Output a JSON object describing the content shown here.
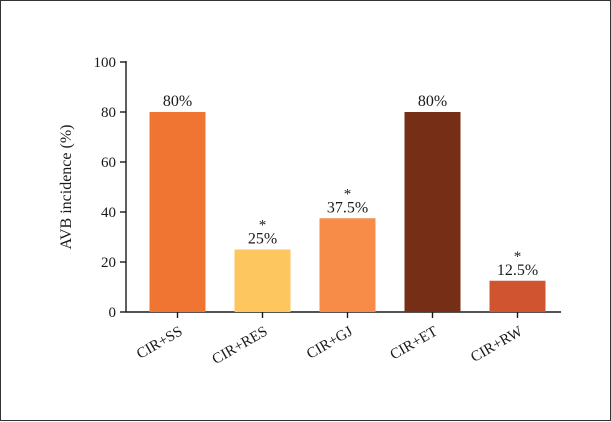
{
  "chart_data": {
    "type": "bar",
    "title": "",
    "xlabel": "",
    "ylabel": "AVB incidence (%)",
    "ylim": [
      0,
      100
    ],
    "yticks": [
      0,
      20,
      40,
      60,
      80,
      100
    ],
    "categories": [
      "CIR+SS",
      "CIR+RES",
      "CIR+GJ",
      "CIR+ET",
      "CIR+RW"
    ],
    "values": [
      80,
      25,
      37.5,
      80,
      12.5
    ],
    "data_labels": [
      "80%",
      "25%",
      "37.5%",
      "80%",
      "12.5%"
    ],
    "significance": [
      "",
      "*",
      "*",
      "",
      "*"
    ],
    "colors": [
      "#F07432",
      "#FDC65E",
      "#F68C48",
      "#772E16",
      "#D0542F"
    ],
    "grid": false,
    "legend": "none"
  }
}
